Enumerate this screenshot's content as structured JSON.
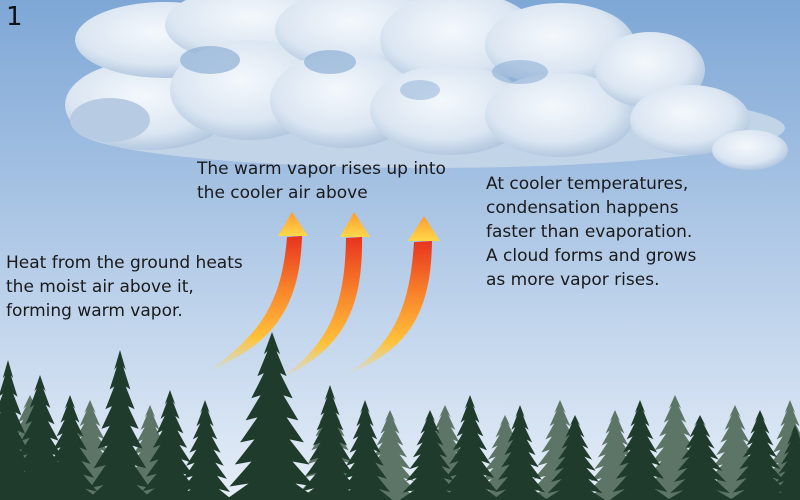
{
  "step_number": "1",
  "labels": {
    "ground_heat": [
      "Heat from the ground heats",
      "the moist air above it,",
      "forming warm vapor."
    ],
    "vapor_rises": [
      "The warm vapor rises up into",
      "the cooler air above"
    ],
    "cloud_forms": [
      "At cooler temperatures,",
      "condensation happens",
      "faster than evaporation.",
      "A cloud forms and grows",
      "as more vapor rises."
    ]
  },
  "colors": {
    "sky_top": "#7ea7d6",
    "sky_bottom": "#e6eef8",
    "cloud_light": "#f2f6fb",
    "cloud_shade": "#a9c1de",
    "arrow_base": "#ffd24a",
    "arrow_mid": "#f9852a",
    "arrow_tip": "#e8331f",
    "trees_back": "#5d7566",
    "trees_front": "#1f3b2c"
  },
  "icons": {
    "arrows": "rising-warm-air-arrow",
    "cloud": "cumulus-cloud",
    "trees": "conifer-forest"
  }
}
